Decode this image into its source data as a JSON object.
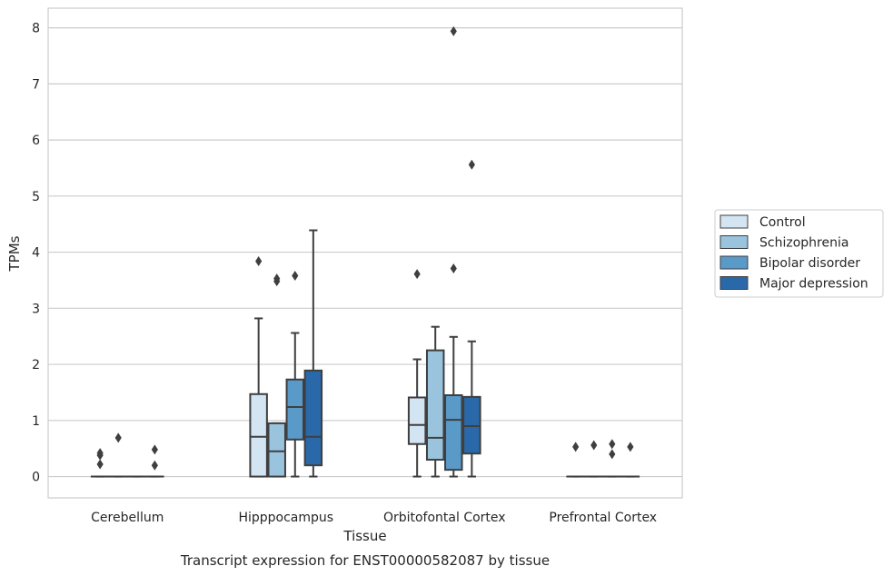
{
  "chart_data": {
    "type": "box",
    "caption": "Transcript expression for ENST00000582087 by tissue",
    "xlabel": "Tissue",
    "ylabel": "TPMs",
    "ylim": [
      -0.38,
      8.35
    ],
    "yticks": [
      0,
      1,
      2,
      3,
      4,
      5,
      6,
      7,
      8
    ],
    "grid": true,
    "legend_position": "right",
    "categories": [
      "Cerebellum",
      "Hipppocampus",
      "Orbitofontal Cortex",
      "Prefrontal Cortex"
    ],
    "series": [
      {
        "name": "Control",
        "color": "#d3e4f3",
        "boxes": [
          {
            "q1": 0,
            "median": 0,
            "q3": 0,
            "whisker_low": 0,
            "whisker_high": 0,
            "outliers": [
              0.42,
              0.38,
              0.22
            ]
          },
          {
            "q1": 0,
            "median": 0.71,
            "q3": 1.47,
            "whisker_low": 0,
            "whisker_high": 2.82,
            "outliers": [
              3.84
            ]
          },
          {
            "q1": 0.58,
            "median": 0.92,
            "q3": 1.41,
            "whisker_low": 0,
            "whisker_high": 2.09,
            "outliers": [
              3.61
            ]
          },
          {
            "q1": 0,
            "median": 0,
            "q3": 0,
            "whisker_low": 0,
            "whisker_high": 0,
            "outliers": [
              0.53
            ]
          }
        ]
      },
      {
        "name": "Schizophrenia",
        "color": "#9ac4de",
        "boxes": [
          {
            "q1": 0,
            "median": 0,
            "q3": 0,
            "whisker_low": 0,
            "whisker_high": 0,
            "outliers": [
              0.69
            ]
          },
          {
            "q1": 0,
            "median": 0.45,
            "q3": 0.95,
            "whisker_low": 0,
            "whisker_high": 0.95,
            "outliers": [
              3.53,
              3.48
            ]
          },
          {
            "q1": 0.3,
            "median": 0.69,
            "q3": 2.25,
            "whisker_low": 0,
            "whisker_high": 2.67,
            "outliers": []
          },
          {
            "q1": 0,
            "median": 0,
            "q3": 0,
            "whisker_low": 0,
            "whisker_high": 0,
            "outliers": [
              0.56
            ]
          }
        ]
      },
      {
        "name": "Bipolar disorder",
        "color": "#5a9ac8",
        "boxes": [
          {
            "q1": 0,
            "median": 0,
            "q3": 0,
            "whisker_low": 0,
            "whisker_high": 0,
            "outliers": []
          },
          {
            "q1": 0.66,
            "median": 1.24,
            "q3": 1.73,
            "whisker_low": 0,
            "whisker_high": 2.56,
            "outliers": [
              3.58
            ]
          },
          {
            "q1": 0.12,
            "median": 1.01,
            "q3": 1.45,
            "whisker_low": 0,
            "whisker_high": 2.49,
            "outliers": [
              7.94,
              3.71
            ]
          },
          {
            "q1": 0,
            "median": 0,
            "q3": 0,
            "whisker_low": 0,
            "whisker_high": 0,
            "outliers": [
              0.58,
              0.4
            ]
          }
        ]
      },
      {
        "name": "Major depression",
        "color": "#2969aa",
        "boxes": [
          {
            "q1": 0,
            "median": 0,
            "q3": 0,
            "whisker_low": 0,
            "whisker_high": 0,
            "outliers": [
              0.48,
              0.2
            ]
          },
          {
            "q1": 0.2,
            "median": 0.71,
            "q3": 1.89,
            "whisker_low": 0,
            "whisker_high": 4.39,
            "outliers": []
          },
          {
            "q1": 0.41,
            "median": 0.9,
            "q3": 1.42,
            "whisker_low": 0,
            "whisker_high": 2.41,
            "outliers": [
              5.56
            ]
          },
          {
            "q1": 0,
            "median": 0,
            "q3": 0,
            "whisker_low": 0,
            "whisker_high": 0,
            "outliers": [
              0.53
            ]
          }
        ]
      }
    ]
  }
}
